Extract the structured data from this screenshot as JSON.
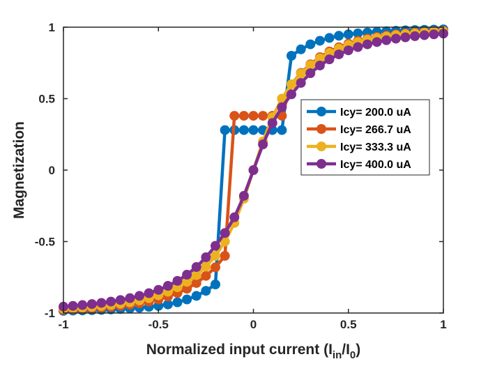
{
  "chart_data": {
    "type": "line",
    "title": "",
    "xlabel": {
      "main": "Normalized input current (I",
      "sub1": "in",
      "mid": "/I",
      "sub2": "0",
      "end": ")"
    },
    "ylabel": "Magnetization",
    "xlim": [
      -1,
      1
    ],
    "ylim": [
      -1,
      1
    ],
    "xticks": [
      -1,
      -0.5,
      0,
      0.5,
      1
    ],
    "xtick_labels": [
      "-1",
      "-0.5",
      "0",
      "0.5",
      "1"
    ],
    "yticks": [
      -1,
      -0.5,
      0,
      0.5,
      1
    ],
    "ytick_labels": [
      "-1",
      "-0.5",
      "0",
      "0.5",
      "1"
    ],
    "grid": false,
    "legend_position": "right",
    "x": [
      -1.0,
      -0.95,
      -0.9,
      -0.85,
      -0.8,
      -0.75,
      -0.7,
      -0.65,
      -0.6,
      -0.55,
      -0.5,
      -0.45,
      -0.4,
      -0.35,
      -0.3,
      -0.25,
      -0.2,
      -0.15,
      -0.1,
      -0.05,
      0.0,
      0.05,
      0.1,
      0.15,
      0.2,
      0.25,
      0.3,
      0.35,
      0.4,
      0.45,
      0.5,
      0.55,
      0.6,
      0.65,
      0.7,
      0.75,
      0.8,
      0.85,
      0.9,
      0.95,
      1.0
    ],
    "series": [
      {
        "name": "Icy= 200.0 uA",
        "color": "#0072BD",
        "values": [
          -0.985,
          -0.983,
          -0.982,
          -0.98,
          -0.978,
          -0.975,
          -0.972,
          -0.968,
          -0.963,
          -0.957,
          -0.95,
          -0.94,
          -0.925,
          -0.905,
          -0.88,
          -0.845,
          -0.8,
          0.28,
          0.28,
          0.28,
          0.28,
          0.28,
          0.28,
          0.28,
          0.8,
          0.845,
          0.88,
          0.905,
          0.925,
          0.94,
          0.95,
          0.957,
          0.963,
          0.968,
          0.972,
          0.975,
          0.978,
          0.98,
          0.982,
          0.983,
          0.985
        ]
      },
      {
        "name": "Icy= 266.7 uA",
        "color": "#D95319",
        "values": [
          -0.978,
          -0.975,
          -0.972,
          -0.968,
          -0.963,
          -0.957,
          -0.95,
          -0.942,
          -0.932,
          -0.92,
          -0.905,
          -0.885,
          -0.86,
          -0.83,
          -0.79,
          -0.74,
          -0.68,
          -0.6,
          0.38,
          0.38,
          0.38,
          0.38,
          0.38,
          0.38,
          0.6,
          0.68,
          0.74,
          0.79,
          0.83,
          0.86,
          0.885,
          0.905,
          0.92,
          0.932,
          0.942,
          0.95,
          0.957,
          0.963,
          0.968,
          0.972,
          0.975
        ]
      },
      {
        "name": "Icy= 333.3 uA",
        "color": "#EDB120",
        "values": [
          -0.97,
          -0.966,
          -0.962,
          -0.957,
          -0.951,
          -0.944,
          -0.935,
          -0.925,
          -0.912,
          -0.896,
          -0.876,
          -0.851,
          -0.82,
          -0.782,
          -0.735,
          -0.675,
          -0.6,
          -0.5,
          -0.37,
          -0.2,
          0.0,
          0.2,
          0.37,
          0.5,
          0.6,
          0.675,
          0.735,
          0.782,
          0.82,
          0.851,
          0.876,
          0.896,
          0.912,
          0.925,
          0.935,
          0.944,
          0.951,
          0.957,
          0.962,
          0.966,
          0.97
        ]
      },
      {
        "name": "Icy= 400.0 uA",
        "color": "#7E2F8E",
        "values": [
          -0.955,
          -0.95,
          -0.944,
          -0.937,
          -0.929,
          -0.92,
          -0.909,
          -0.896,
          -0.88,
          -0.861,
          -0.838,
          -0.81,
          -0.775,
          -0.732,
          -0.678,
          -0.61,
          -0.53,
          -0.44,
          -0.33,
          -0.18,
          0.0,
          0.18,
          0.33,
          0.44,
          0.53,
          0.61,
          0.678,
          0.732,
          0.775,
          0.81,
          0.838,
          0.861,
          0.88,
          0.896,
          0.909,
          0.92,
          0.929,
          0.937,
          0.944,
          0.95,
          0.955
        ]
      }
    ]
  }
}
